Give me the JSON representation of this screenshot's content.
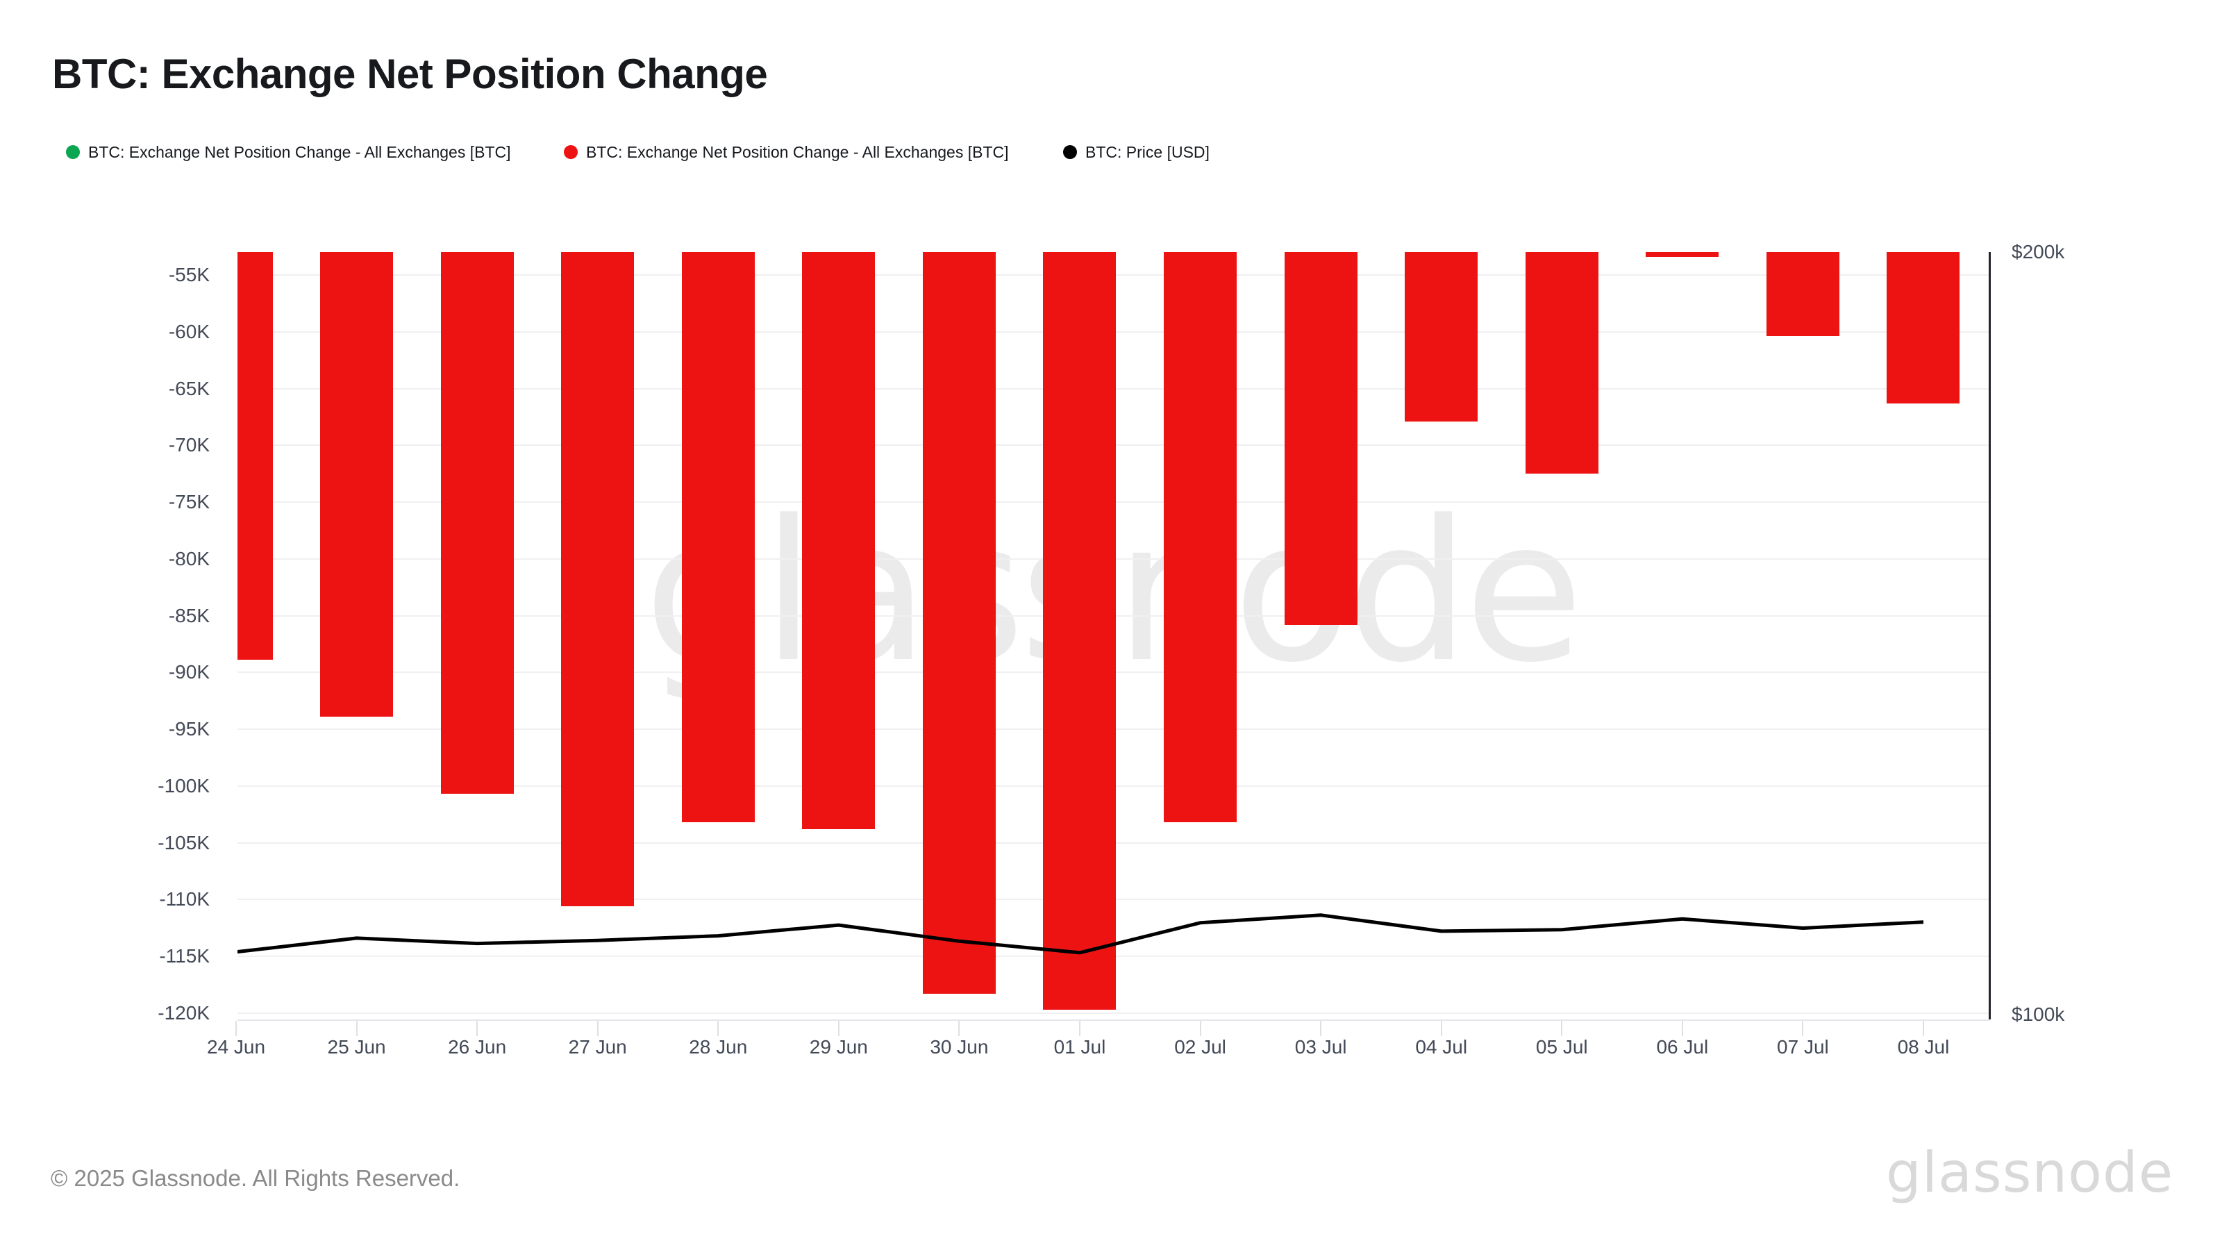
{
  "header": {
    "title": "BTC: Exchange Net Position Change"
  },
  "legend": {
    "items": [
      {
        "label": "BTC: Exchange Net Position Change - All Exchanges [BTC]",
        "color": "#0ba651",
        "icon": "green-dot-icon"
      },
      {
        "label": "BTC: Exchange Net Position Change - All Exchanges [BTC]",
        "color": "#ee1313",
        "icon": "red-dot-icon"
      },
      {
        "label": "BTC: Price [USD]",
        "color": "#000000",
        "icon": "black-dot-icon"
      }
    ]
  },
  "chart_data": {
    "type": "bar",
    "title": "BTC: Exchange Net Position Change",
    "categories": [
      "24 Jun",
      "25 Jun",
      "26 Jun",
      "27 Jun",
      "28 Jun",
      "29 Jun",
      "30 Jun",
      "01 Jul",
      "02 Jul",
      "03 Jul",
      "04 Jul",
      "05 Jul",
      "06 Jul",
      "07 Jul",
      "08 Jul"
    ],
    "series": [
      {
        "name": "BTC: Exchange Net Position Change - All Exchanges [BTC]",
        "type": "bar",
        "unit": "BTC",
        "color": "#ee1313",
        "values": [
          -88900,
          -93900,
          -100700,
          -110600,
          -103200,
          -103800,
          -118300,
          -119700,
          -103200,
          -85800,
          -67900,
          -72500,
          -53400,
          -60400,
          -66300
        ]
      },
      {
        "name": "BTC: Price [USD]",
        "type": "line",
        "unit": "USD",
        "color": "#000000",
        "values": [
          108800,
          110600,
          109900,
          110300,
          110900,
          112300,
          110200,
          108700,
          112600,
          113600,
          111500,
          111700,
          113100,
          111900,
          112700
        ]
      }
    ],
    "left_axis": {
      "tick_values": [
        -55000,
        -60000,
        -65000,
        -70000,
        -75000,
        -80000,
        -85000,
        -90000,
        -95000,
        -100000,
        -105000,
        -110000,
        -115000,
        -120000
      ],
      "tick_labels": [
        "-55K",
        "-60K",
        "-65K",
        "-70K",
        "-75K",
        "-80K",
        "-85K",
        "-90K",
        "-95K",
        "-100K",
        "-105K",
        "-110K",
        "-115K",
        "-120K"
      ],
      "range_top": -52970,
      "range_bottom": -120550
    },
    "right_axis": {
      "top_label": "$200k",
      "bottom_label": "$100k",
      "range": [
        100000,
        200000
      ]
    },
    "grid": true,
    "legend_position": "top"
  },
  "watermark": {
    "center_text": "glassnode",
    "corner_text": "glassnode"
  },
  "footer": {
    "copyright": "© 2025 Glassnode. All Rights Reserved."
  }
}
